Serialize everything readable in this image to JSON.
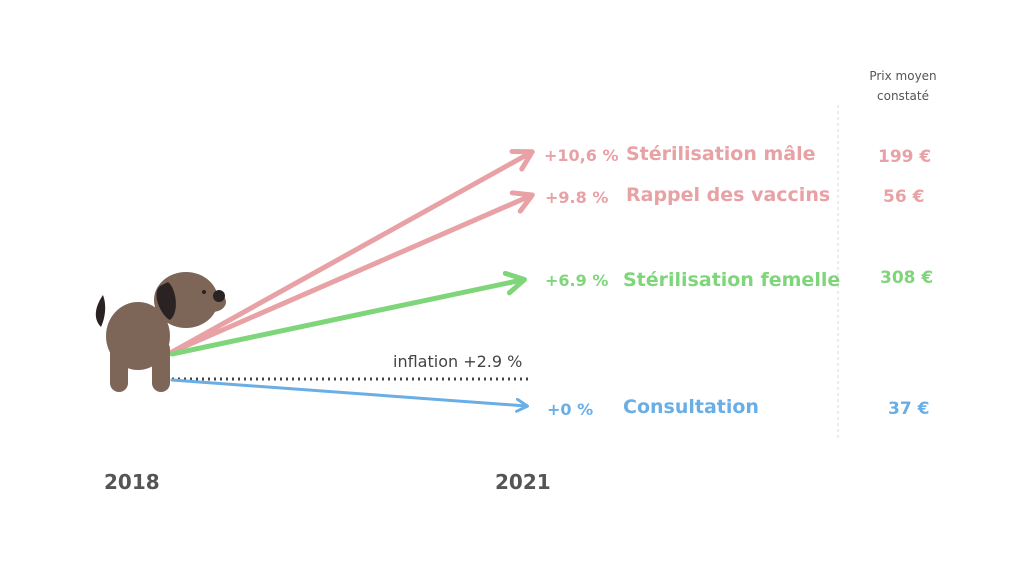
{
  "header": {
    "price_line1": "Prix moyen",
    "price_line2": "constaté"
  },
  "colors": {
    "increase": "#e8a1a5",
    "moderate": "#7fd67a",
    "flat": "#6aaee6",
    "year_text": "#555555",
    "dog_body": "#7d6558",
    "dog_ear": "#2b2223"
  },
  "chart_data": {
    "type": "slope",
    "x": [
      "2018",
      "2021"
    ],
    "inflation": {
      "label": "inflation +2.9 %",
      "value": 2.9
    },
    "series": [
      {
        "name": "Stérilisation mâle",
        "change": 10.6,
        "change_label": "+10,6 %",
        "price": "199 €",
        "color_key": "increase"
      },
      {
        "name": "Rappel des vaccins",
        "change": 9.8,
        "change_label": "+9.8 %",
        "price": "56 €",
        "color_key": "increase"
      },
      {
        "name": "Stérilisation femelle",
        "change": 6.9,
        "change_label": "+6.9 %",
        "price": "308 €",
        "color_key": "moderate"
      },
      {
        "name": "Consultation",
        "change": 0,
        "change_label": "+0 %",
        "price": "37 €",
        "color_key": "flat"
      }
    ]
  }
}
